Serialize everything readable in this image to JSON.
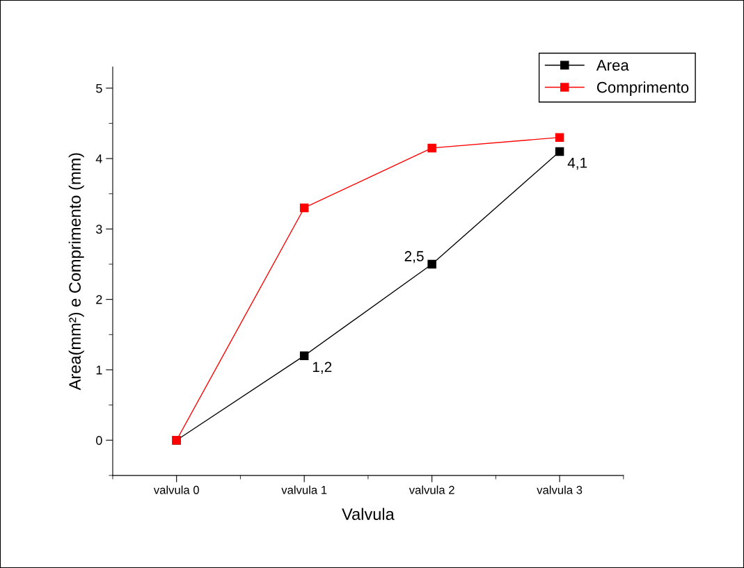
{
  "chart_data": {
    "type": "line",
    "xlabel": "Valvula",
    "ylabel": "Area(mm²) e Comprimento (mm)",
    "categories": [
      "valvula 0",
      "valvula 1",
      "valvula 2",
      "valvula 3"
    ],
    "series": [
      {
        "name": "Area",
        "color": "#000000",
        "values": [
          0,
          1.2,
          2.5,
          4.1
        ],
        "value_labels": [
          null,
          "1,2",
          "2,5",
          "4,1"
        ]
      },
      {
        "name": "Comprimento",
        "color": "#ff0000",
        "values": [
          0,
          3.3,
          4.15,
          4.3
        ]
      }
    ],
    "ylim": [
      -0.5,
      5.3
    ],
    "yticks": [
      0,
      1,
      2,
      3,
      4,
      5
    ],
    "grid": false,
    "legend": "top right",
    "marker": "square",
    "line_style": "solid"
  }
}
